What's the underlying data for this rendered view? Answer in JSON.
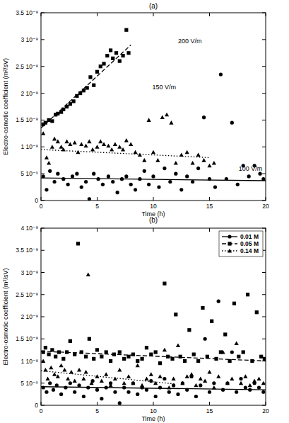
{
  "chart_data": [
    {
      "type": "scatter",
      "title": "(a)",
      "xlabel": "Time (h)",
      "ylabel": "Electro-osmotic coefficient (m²/sV)",
      "xlim": [
        0,
        20
      ],
      "ylim": [
        0,
        3.5e-08
      ],
      "xticks": [
        0,
        5,
        10,
        15,
        20
      ],
      "yticks": [
        0,
        {
          "value": 5e-09,
          "label": "5 10⁻⁹"
        },
        {
          "value": 1e-08,
          "label": "1 10⁻⁸"
        },
        {
          "value": 1.5e-08,
          "label": "1.5 10⁻⁸"
        },
        {
          "value": 2e-08,
          "label": "2 10⁻⁸"
        },
        {
          "value": 2.5e-08,
          "label": "2.5 10⁻⁸"
        },
        {
          "value": 3e-08,
          "label": "3 10⁻⁸"
        },
        {
          "value": 3.5e-08,
          "label": "3.5 10⁻⁸"
        }
      ],
      "series": [
        {
          "color": "#000000",
          "marker": "square",
          "line_style": "dashed",
          "x": [
            0.2,
            0.4,
            0.7,
            1,
            1.3,
            1.5,
            1.8,
            2,
            2.3,
            2.6,
            2.9,
            3.2,
            3.5,
            3.8,
            4.1,
            4.4,
            4.7,
            5,
            5.3,
            5.6,
            5.9,
            6.2,
            6.4,
            6.7,
            7,
            7.3,
            7.6,
            7.8
          ],
          "values": [
            1.42e-08,
            1.45e-08,
            1.5e-08,
            1.48e-08,
            1.6e-08,
            1.62e-08,
            1.65e-08,
            1.7e-08,
            1.75e-08,
            1.8e-08,
            1.85e-08,
            1.95e-08,
            2e-08,
            2.05e-08,
            2.1e-08,
            2.3e-08,
            2.15e-08,
            2.4e-08,
            2.5e-08,
            2.55e-08,
            2.7e-08,
            2.8e-08,
            2.65e-08,
            2.75e-08,
            2.6e-08,
            2.7e-08,
            3.18e-08,
            2.75e-08
          ],
          "trend": {
            "x": [
              0,
              8
            ],
            "values": [
              1.35e-08,
              2.9e-08
            ]
          }
        },
        {
          "color": "#000000",
          "marker": "triangle",
          "line_style": "dotted",
          "x": [
            0.2,
            0.5,
            0.7,
            1,
            1.2,
            1.5,
            1.8,
            2,
            2.3,
            2.6,
            3,
            3.3,
            3.6,
            4,
            4.3,
            4.6,
            5,
            5.3,
            5.6,
            6,
            6.3,
            6.6,
            7,
            7.3,
            7.6,
            8,
            8.4,
            8.8,
            9.2,
            9.6,
            10,
            10.4,
            10.8,
            11.2,
            11.6,
            12,
            12.5,
            13,
            13.5,
            14,
            14.5,
            15,
            15.4
          ],
          "values": [
            1.25e-08,
            8e-09,
            7e-09,
            1e-08,
            1.15e-08,
            1.1e-08,
            1e-08,
            9.5e-09,
            1.1e-08,
            1.05e-08,
            1.08e-08,
            9e-09,
            1.05e-08,
            1.02e-08,
            1.1e-08,
            9.5e-09,
            1e-08,
            1.1e-08,
            1.05e-08,
            1.02e-08,
            9.5e-09,
            1.05e-08,
            1e-08,
            9.5e-09,
            1.12e-08,
            1.05e-08,
            9e-09,
            8.5e-09,
            7.5e-09,
            1.5e-08,
            9e-09,
            7.5e-09,
            1.55e-08,
            1.6e-08,
            1.45e-08,
            7e-09,
            8.5e-09,
            9e-09,
            7e-09,
            8.5e-09,
            7.5e-09,
            6.5e-09,
            7e-09
          ],
          "trend": {
            "x": [
              0,
              15
            ],
            "values": [
              9.5e-09,
              8e-09
            ]
          }
        },
        {
          "color": "#000000",
          "marker": "circle",
          "line_style": "solid",
          "x": [
            0.2,
            0.5,
            0.8,
            1.2,
            1.5,
            2,
            2.4,
            2.8,
            3.2,
            3.6,
            4,
            4.3,
            4.7,
            5.1,
            5.5,
            6,
            6.4,
            6.8,
            7.2,
            7.6,
            8,
            8.4,
            8.8,
            9.2,
            9.6,
            10,
            10.5,
            11,
            11.5,
            12,
            12.5,
            13,
            13.5,
            14,
            14.5,
            15,
            15.5,
            16,
            16.5,
            17,
            17.5,
            18,
            18.5,
            19,
            19.5,
            19.8
          ],
          "values": [
            4.5e-09,
            2e-09,
            5.5e-09,
            3.5e-09,
            5e-09,
            4e-09,
            3e-09,
            4.5e-09,
            5e-09,
            2.5e-09,
            3.5e-09,
            3e-10,
            5e-09,
            4e-09,
            3e-09,
            4.5e-09,
            3.5e-09,
            1.5e-09,
            4e-09,
            4.5e-09,
            3e-09,
            2e-09,
            4e-09,
            5.5e-09,
            3e-09,
            4.5e-09,
            2.5e-09,
            6e-09,
            3.5e-09,
            5e-09,
            2e-09,
            4.5e-09,
            3.5e-09,
            6e-09,
            1.55e-08,
            4e-09,
            2.5e-09,
            2.35e-08,
            4e-09,
            1.45e-08,
            3e-09,
            6.5e-09,
            4.5e-09,
            6.5e-09,
            5e-09,
            4e-09
          ],
          "trend": {
            "x": [
              0,
              20
            ],
            "values": [
              4.2e-09,
              3.7e-09
            ]
          }
        }
      ],
      "annotations": [
        {
          "text": "200 V/m",
          "x": 12.2,
          "y": 2.97e-08
        },
        {
          "text": "150 V/m",
          "x": 9.9,
          "y": 2.1e-08
        },
        {
          "text": "100 V/m",
          "x": 17.6,
          "y": 5.9e-09
        }
      ]
    },
    {
      "type": "scatter",
      "title": "(b)",
      "xlabel": "Time (h)",
      "ylabel": "Electro-osmotic coefficient (m²/sV)",
      "xlim": [
        0,
        20
      ],
      "ylim": [
        0,
        4e-08
      ],
      "xticks": [
        0,
        5,
        10,
        15,
        20
      ],
      "yticks": [
        0,
        {
          "value": 5e-09,
          "label": "5 10⁻⁹"
        },
        {
          "value": 1e-08,
          "label": "1 10⁻⁸"
        },
        {
          "value": 1.5e-08,
          "label": "1.5 10⁻⁸"
        },
        {
          "value": 2e-08,
          "label": "2 10⁻⁸"
        },
        {
          "value": 2.5e-08,
          "label": "2.5 10⁻⁸"
        },
        {
          "value": 3e-08,
          "label": "3 10⁻⁸"
        },
        {
          "value": 3.5e-08,
          "label": "3.5 10⁻⁸"
        },
        {
          "value": 4e-08,
          "label": "4 10⁻⁸"
        }
      ],
      "legend": "upper right",
      "series": [
        {
          "name": "0.01 M",
          "color": "#000000",
          "marker": "circle",
          "line_style": "solid",
          "x": [
            0.2,
            0.5,
            0.8,
            1.1,
            1.4,
            1.8,
            2.2,
            2.6,
            3,
            3.4,
            3.8,
            4.2,
            4.6,
            5,
            5.4,
            5.8,
            6.2,
            6.6,
            7,
            7.4,
            7.8,
            8.2,
            8.6,
            9,
            9.4,
            9.8,
            10.2,
            10.6,
            11,
            11.4,
            11.8,
            12.2,
            12.6,
            13,
            13.4,
            13.8,
            14.2,
            14.6,
            15,
            15.4,
            15.8,
            16.2,
            16.6,
            17,
            17.4,
            17.8,
            18.2,
            18.6,
            19,
            19.4,
            19.8
          ],
          "values": [
            4e-09,
            3e-09,
            5e-09,
            3.5e-09,
            4.5e-09,
            2.5e-09,
            4e-09,
            5e-09,
            3e-09,
            4.5e-09,
            2e-09,
            4e-09,
            5.5e-09,
            3.5e-09,
            1.5e-09,
            4e-09,
            5e-09,
            3e-09,
            5e-10,
            4e-09,
            3e-09,
            5e-09,
            2.5e-09,
            4e-09,
            3.5e-09,
            5.5e-09,
            2e-09,
            4e-09,
            6e-09,
            3e-09,
            4.5e-09,
            2.5e-09,
            5e-09,
            3.5e-09,
            6.5e-09,
            2e-09,
            4.5e-09,
            1.5e-08,
            3e-09,
            5e-09,
            2.35e-08,
            3.5e-09,
            5e-09,
            1.2e-08,
            3e-09,
            6e-09,
            4e-09,
            3.5e-09,
            5e-09,
            4e-09,
            3e-09
          ],
          "trend": {
            "x": [
              0,
              20
            ],
            "values": [
              4.2e-09,
              3.5e-09
            ]
          }
        },
        {
          "name": "0.05 M",
          "color": "#000000",
          "marker": "square",
          "line_style": "dashed",
          "x": [
            0.2,
            0.4,
            0.7,
            1,
            1.3,
            1.6,
            2,
            2.3,
            2.6,
            3,
            3.3,
            3.6,
            4,
            4.3,
            4.7,
            5,
            5.4,
            5.8,
            6.2,
            6.5,
            7,
            7.4,
            7.8,
            8.2,
            8.6,
            9,
            9.4,
            9.8,
            10.2,
            10.6,
            11,
            11.3,
            11.7,
            12,
            12.4,
            12.8,
            13.2,
            13.6,
            14,
            14.4,
            14.8,
            15.2,
            15.6,
            16,
            16.4,
            16.8,
            17.2,
            17.6,
            18,
            18.4,
            18.8,
            19.2,
            19.6,
            19.9
          ],
          "values": [
            1.2e-08,
            1.3e-08,
            1.15e-08,
            1.25e-08,
            1.1e-08,
            1.2e-08,
            1.05e-08,
            1.2e-08,
            1.45e-08,
            1.15e-08,
            3.65e-08,
            1.2e-08,
            1.1e-08,
            1.5e-08,
            1.05e-08,
            1.25e-08,
            1.1e-08,
            1.2e-08,
            1e-08,
            1.15e-08,
            1.2e-08,
            1.05e-08,
            1.1e-08,
            1.15e-08,
            1e-08,
            1.05e-08,
            1.3e-08,
            1.15e-08,
            1.2e-08,
            9.5e-09,
            2.75e-08,
            1.1e-08,
            1.05e-08,
            2.05e-08,
            1.1e-08,
            1e-08,
            1.7e-08,
            1.15e-08,
            1e-08,
            2.2e-08,
            1.1e-08,
            1.9e-08,
            1.05e-08,
            1.2e-08,
            1.6e-08,
            1e-08,
            2.3e-08,
            1.1e-08,
            1.2e-08,
            2.5e-08,
            1e-08,
            2.1e-08,
            1.1e-08,
            1.05e-08
          ],
          "trend": {
            "x": [
              0,
              20
            ],
            "values": [
              1.22e-08,
              1e-08
            ]
          }
        },
        {
          "name": "0.14 M",
          "color": "#000000",
          "marker": "triangle",
          "line_style": "dotted",
          "x": [
            0.2,
            0.4,
            0.6,
            0.9,
            1.2,
            1.5,
            1.8,
            2.1,
            2.4,
            2.7,
            3,
            3.4,
            3.8,
            4,
            4.2,
            4.5,
            5,
            5.4,
            5.8,
            6.2,
            6.6,
            7,
            7.4,
            7.8,
            8.2,
            8.6,
            9,
            9.4,
            9.8,
            10.2,
            10.6,
            11,
            11.4,
            11.8,
            12.2,
            12.6,
            13,
            13.4,
            13.8,
            14.2,
            14.6,
            15,
            15.4,
            15.8,
            16.2,
            16.6,
            17,
            17.4,
            17.8,
            18.2,
            18.6,
            19,
            19.4,
            19.8
          ],
          "values": [
            1e-08,
            8e-09,
            6e-09,
            8.5e-09,
            7e-09,
            6.5e-09,
            9e-09,
            8e-09,
            6e-09,
            7.5e-09,
            5.5e-09,
            8e-09,
            6e-09,
            7.5e-09,
            2.95e-08,
            5e-09,
            6.5e-09,
            5.5e-09,
            7e-09,
            4.5e-09,
            6e-09,
            8e-09,
            5e-09,
            6.5e-09,
            5e-09,
            9e-09,
            4.5e-09,
            6e-09,
            7e-09,
            5e-09,
            6.5e-09,
            1.25e-08,
            4e-09,
            6e-09,
            1.35e-08,
            5e-09,
            6.5e-09,
            7e-09,
            4.5e-09,
            6e-09,
            5.5e-09,
            7.5e-09,
            4e-09,
            6.5e-09,
            1.2e-08,
            5e-09,
            6e-09,
            1.4e-08,
            5e-09,
            6.5e-09,
            4.5e-09,
            5.5e-09,
            6e-09,
            5e-09
          ],
          "trend": {
            "x": [
              0,
              12
            ],
            "values": [
              7.8e-09,
              4.8e-09
            ]
          }
        }
      ]
    }
  ]
}
